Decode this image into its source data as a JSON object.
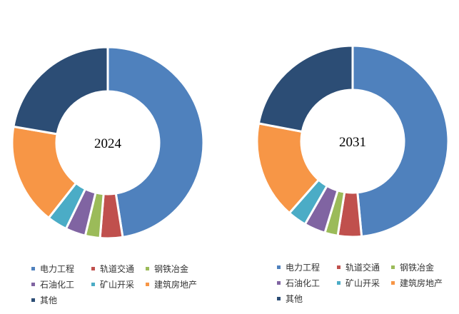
{
  "chart_data": [
    {
      "type": "pie",
      "title": "",
      "center_label": "2024",
      "categories": [
        "电力工程",
        "轨道交通",
        "钢铁冶金",
        "石油化工",
        "矿山开采",
        "建筑房地产",
        "其他"
      ],
      "values": [
        47.5,
        3.8,
        2.5,
        3.4,
        3.4,
        17.1,
        22.3
      ]
    },
    {
      "type": "pie",
      "title": "",
      "center_label": "2031",
      "categories": [
        "电力工程",
        "轨道交通",
        "钢铁冶金",
        "石油化工",
        "矿山开采",
        "建筑房地产",
        "其他"
      ],
      "values": [
        48.5,
        4.0,
        2.2,
        3.6,
        3.2,
        16.5,
        22.0
      ]
    }
  ],
  "legend": {
    "placement": "bottom",
    "items": [
      {
        "label": "电力工程",
        "color": "#4f81bd"
      },
      {
        "label": "轨道交通",
        "color": "#c0504d"
      },
      {
        "label": "钢铁冶金",
        "color": "#9bbb59"
      },
      {
        "label": "石油化工",
        "color": "#8064a2"
      },
      {
        "label": "矿山开采",
        "color": "#4bacc6"
      },
      {
        "label": "建筑房地产",
        "color": "#f79646"
      },
      {
        "label": "其他",
        "color": "#2c4d75"
      }
    ]
  }
}
